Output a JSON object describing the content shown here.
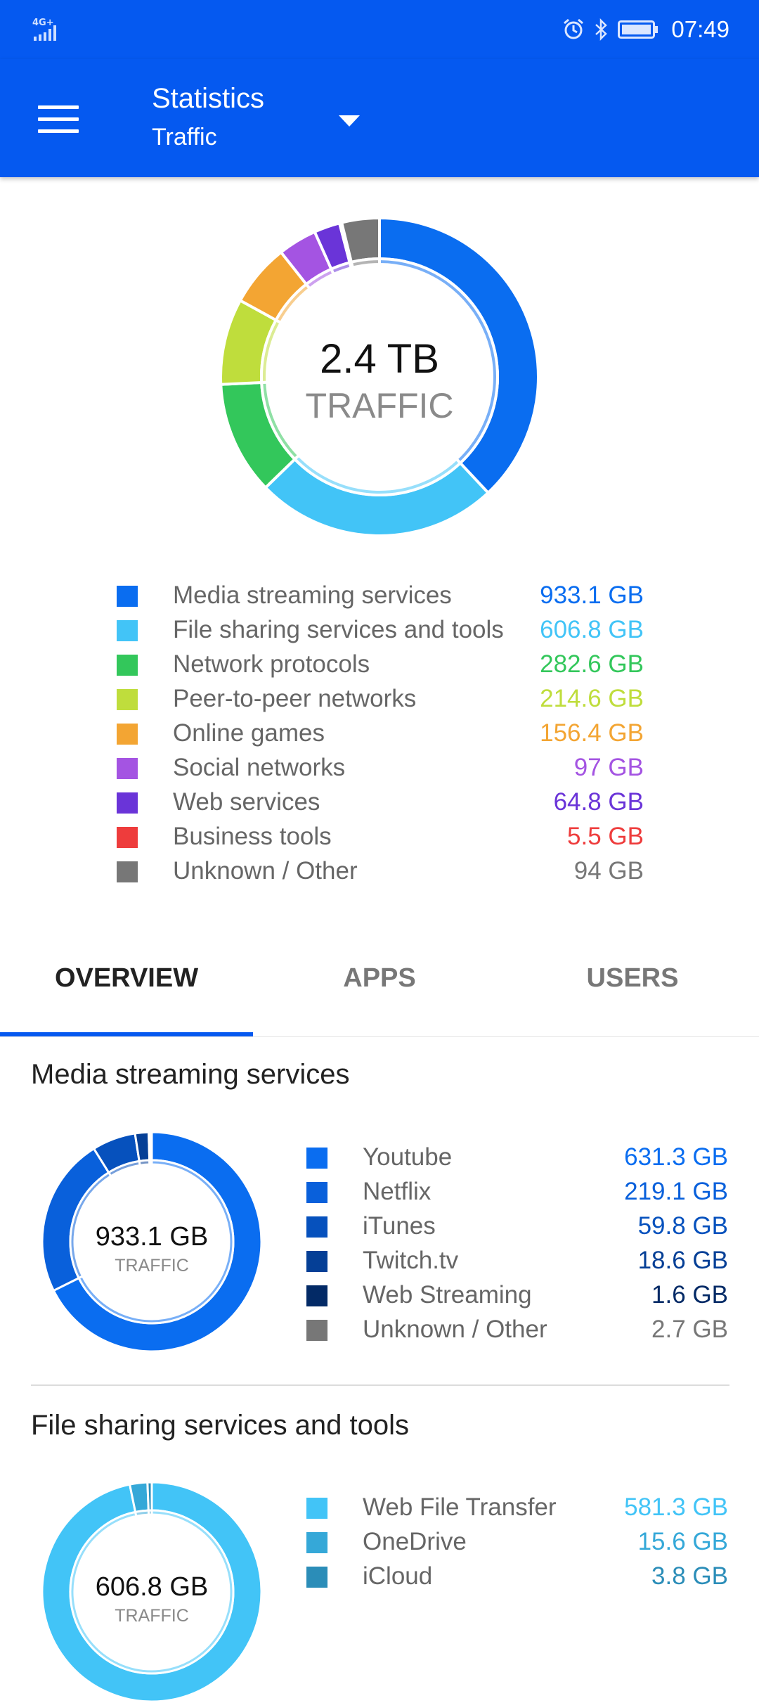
{
  "status_bar": {
    "network": "4G+",
    "time": "07:49"
  },
  "app_bar": {
    "title": "Statistics",
    "subtitle": "Traffic"
  },
  "summary": {
    "total_value": "2.4 TB",
    "total_label": "TRAFFIC",
    "chart_data": {
      "type": "pie",
      "series": [
        {
          "name": "Media streaming services",
          "value_gb": 933.1,
          "display": "933.1 GB",
          "color": "#0a6df0"
        },
        {
          "name": "File sharing services and tools",
          "value_gb": 606.8,
          "display": "606.8 GB",
          "color": "#42c4f7"
        },
        {
          "name": "Network protocols",
          "value_gb": 282.6,
          "display": "282.6 GB",
          "color": "#33c75b"
        },
        {
          "name": "Peer-to-peer networks",
          "value_gb": 214.6,
          "display": "214.6 GB",
          "color": "#bfdd3c"
        },
        {
          "name": "Online games",
          "value_gb": 156.4,
          "display": "156.4 GB",
          "color": "#f3a533"
        },
        {
          "name": "Social networks",
          "value_gb": 97,
          "display": "97 GB",
          "color": "#a454e2"
        },
        {
          "name": "Web services",
          "value_gb": 64.8,
          "display": "64.8 GB",
          "color": "#6a34d8"
        },
        {
          "name": "Business tools",
          "value_gb": 5.5,
          "display": "5.5 GB",
          "color": "#ee3c3c"
        },
        {
          "name": "Unknown / Other",
          "value_gb": 94,
          "display": "94 GB",
          "color": "#777777"
        }
      ]
    }
  },
  "tabs": [
    {
      "label": "OVERVIEW",
      "active": true
    },
    {
      "label": "APPS",
      "active": false
    },
    {
      "label": "USERS",
      "active": false
    }
  ],
  "sections": [
    {
      "title": "Media streaming services",
      "total_value": "933.1 GB",
      "total_label": "TRAFFIC",
      "chart_data": {
        "type": "pie",
        "series": [
          {
            "name": "Youtube",
            "value_gb": 631.3,
            "display": "631.3 GB",
            "color": "#0a6df0"
          },
          {
            "name": "Netflix",
            "value_gb": 219.1,
            "display": "219.1 GB",
            "color": "#0960db"
          },
          {
            "name": "iTunes",
            "value_gb": 59.8,
            "display": "59.8 GB",
            "color": "#0651bd"
          },
          {
            "name": "Twitch.tv",
            "value_gb": 18.6,
            "display": "18.6 GB",
            "color": "#053f96"
          },
          {
            "name": "Web Streaming",
            "value_gb": 1.6,
            "display": "1.6 GB",
            "color": "#032a66"
          },
          {
            "name": "Unknown / Other",
            "value_gb": 2.7,
            "display": "2.7 GB",
            "color": "#777777"
          }
        ]
      }
    },
    {
      "title": "File sharing services and tools",
      "total_value": "606.8 GB",
      "total_label": "TRAFFIC",
      "chart_data": {
        "type": "pie",
        "series": [
          {
            "name": "Web File Transfer",
            "value_gb": 581.3,
            "display": "581.3 GB",
            "color": "#42c4f7"
          },
          {
            "name": "OneDrive",
            "value_gb": 15.6,
            "display": "15.6 GB",
            "color": "#35a8d8"
          },
          {
            "name": "iCloud",
            "value_gb": 3.8,
            "display": "3.8 GB",
            "color": "#2b8db8"
          }
        ]
      }
    }
  ]
}
